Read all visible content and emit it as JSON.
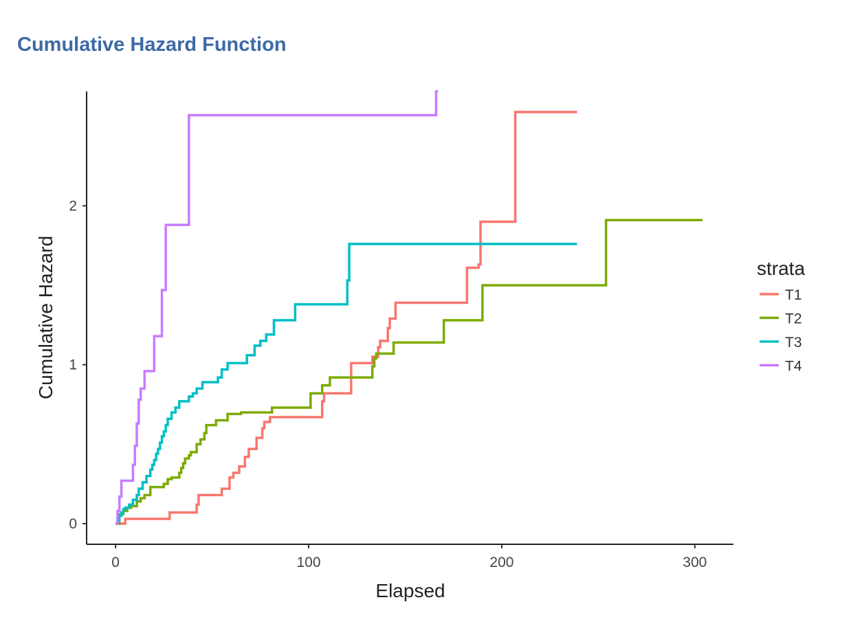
{
  "chart_data": {
    "type": "line",
    "step": true,
    "title": "Cumulative Hazard Function",
    "xlabel": "Elapsed",
    "ylabel": "Cumulative Hazard",
    "xlim": [
      -15,
      320
    ],
    "ylim": [
      -0.13,
      2.72
    ],
    "xticks": [
      0,
      100,
      200,
      300
    ],
    "yticks": [
      0,
      1,
      2
    ],
    "grid": false,
    "legend": {
      "title": "strata",
      "position": "right"
    },
    "series": [
      {
        "name": "T1",
        "color": "#f8766d",
        "x": [
          0,
          5,
          28,
          42,
          43,
          50,
          55,
          59,
          61,
          64,
          67,
          69,
          73,
          76,
          77,
          80,
          107,
          108,
          122,
          133,
          136,
          137,
          141,
          142,
          145,
          182,
          183,
          188,
          189,
          207,
          208,
          239
        ],
        "y": [
          0,
          0.03,
          0.07,
          0.12,
          0.18,
          0.18,
          0.22,
          0.29,
          0.32,
          0.36,
          0.42,
          0.47,
          0.54,
          0.6,
          0.64,
          0.67,
          0.77,
          0.82,
          1.01,
          1.05,
          1.11,
          1.15,
          1.23,
          1.29,
          1.39,
          1.61,
          1.61,
          1.63,
          1.9,
          2.59,
          2.59,
          2.59
        ]
      },
      {
        "name": "T2",
        "color": "#7caa00",
        "x": [
          0,
          2,
          4,
          6,
          8,
          11,
          13,
          15,
          18,
          25,
          27,
          29,
          33,
          34,
          35,
          36,
          38,
          39,
          42,
          44,
          46,
          47,
          52,
          58,
          65,
          70,
          81,
          92,
          101,
          107,
          111,
          114,
          133,
          134,
          135,
          144,
          170,
          190,
          254,
          304
        ],
        "y": [
          0,
          0.06,
          0.08,
          0.1,
          0.11,
          0.14,
          0.16,
          0.18,
          0.23,
          0.25,
          0.28,
          0.29,
          0.32,
          0.35,
          0.38,
          0.41,
          0.43,
          0.45,
          0.5,
          0.53,
          0.57,
          0.62,
          0.65,
          0.69,
          0.7,
          0.7,
          0.73,
          0.73,
          0.82,
          0.87,
          0.92,
          0.92,
          0.99,
          1.04,
          1.07,
          1.14,
          1.28,
          1.5,
          1.91,
          1.91
        ]
      },
      {
        "name": "T3",
        "color": "#00bfc4",
        "x": [
          0,
          1,
          2,
          3,
          4,
          5,
          7,
          9,
          11,
          12,
          14,
          16,
          18,
          19,
          20,
          21,
          22,
          23,
          24,
          25,
          26,
          27,
          29,
          31,
          33,
          38,
          40,
          42,
          45,
          53,
          55,
          58,
          68,
          72,
          75,
          78,
          82,
          93,
          120,
          121,
          123,
          239
        ],
        "y": [
          0,
          0.02,
          0.05,
          0.07,
          0.09,
          0.1,
          0.12,
          0.15,
          0.18,
          0.22,
          0.26,
          0.3,
          0.34,
          0.37,
          0.4,
          0.44,
          0.47,
          0.51,
          0.55,
          0.58,
          0.62,
          0.66,
          0.7,
          0.73,
          0.77,
          0.8,
          0.82,
          0.85,
          0.89,
          0.92,
          0.97,
          1.01,
          1.06,
          1.12,
          1.15,
          1.19,
          1.28,
          1.38,
          1.53,
          1.76,
          1.76,
          1.76
        ]
      },
      {
        "name": "T4",
        "color": "#c77cff",
        "x": [
          0,
          1,
          2,
          3,
          9,
          10,
          11,
          12,
          13,
          15,
          20,
          24,
          25,
          26,
          38,
          166,
          167
        ],
        "y": [
          0,
          0.08,
          0.17,
          0.27,
          0.37,
          0.49,
          0.63,
          0.78,
          0.85,
          0.96,
          1.18,
          1.47,
          1.47,
          1.88,
          2.57,
          2.72,
          2.72
        ]
      }
    ]
  }
}
